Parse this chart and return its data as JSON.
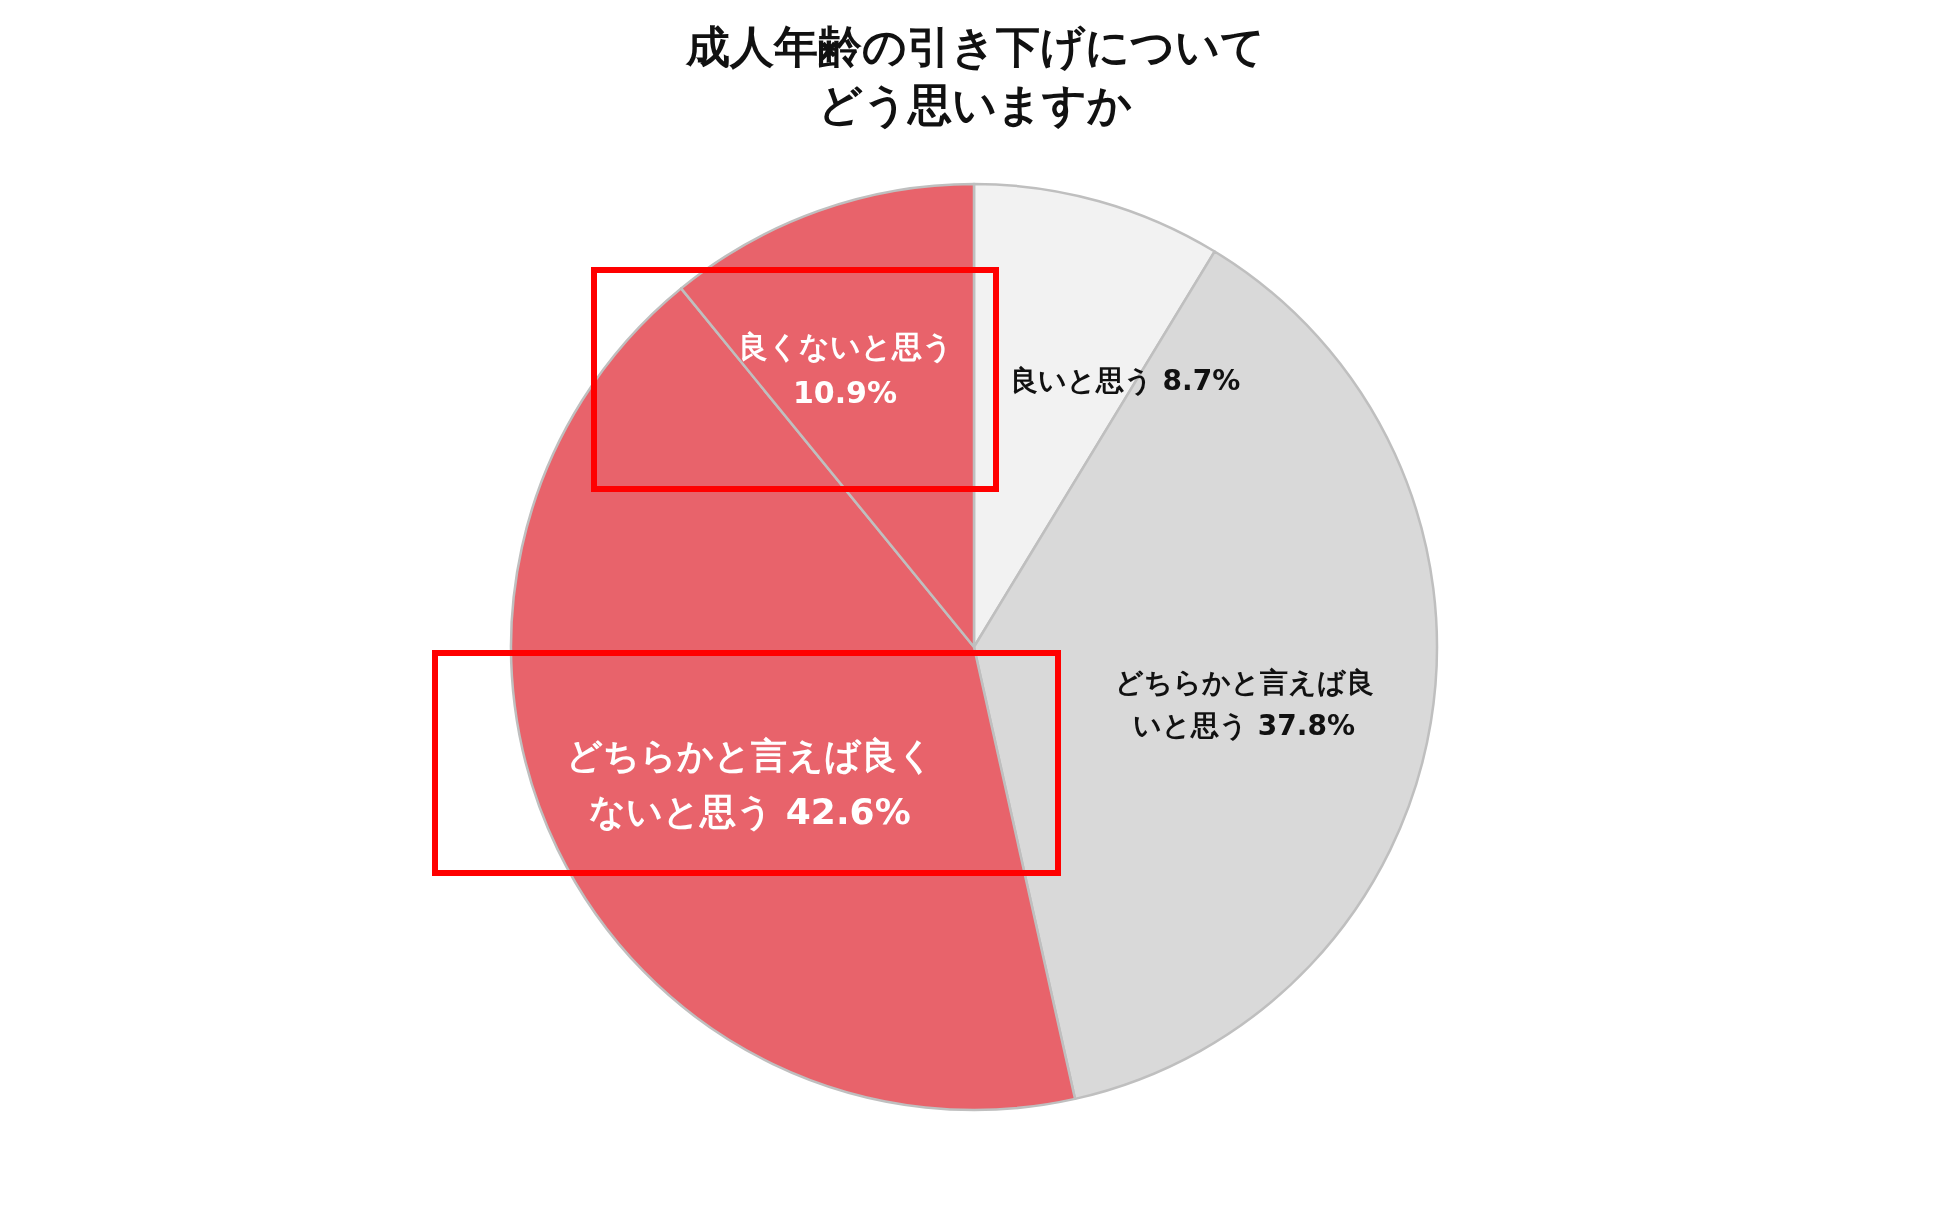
{
  "chart_data": {
    "type": "pie",
    "title": "成人年齢の引き下げについてどう思いますか",
    "categories": [
      "良いと思う",
      "どちらかと言えば良いと思う",
      "どちらかと言えば良くないと思う",
      "良くないと思う"
    ],
    "values": [
      8.7,
      37.8,
      42.6,
      10.9
    ],
    "value_labels": [
      "8.7%",
      "37.8%",
      "42.6%",
      "10.9%"
    ],
    "colors": [
      "#f2f2f2",
      "#d9d9d9",
      "#e8636b",
      "#e8636b"
    ]
  }
}
